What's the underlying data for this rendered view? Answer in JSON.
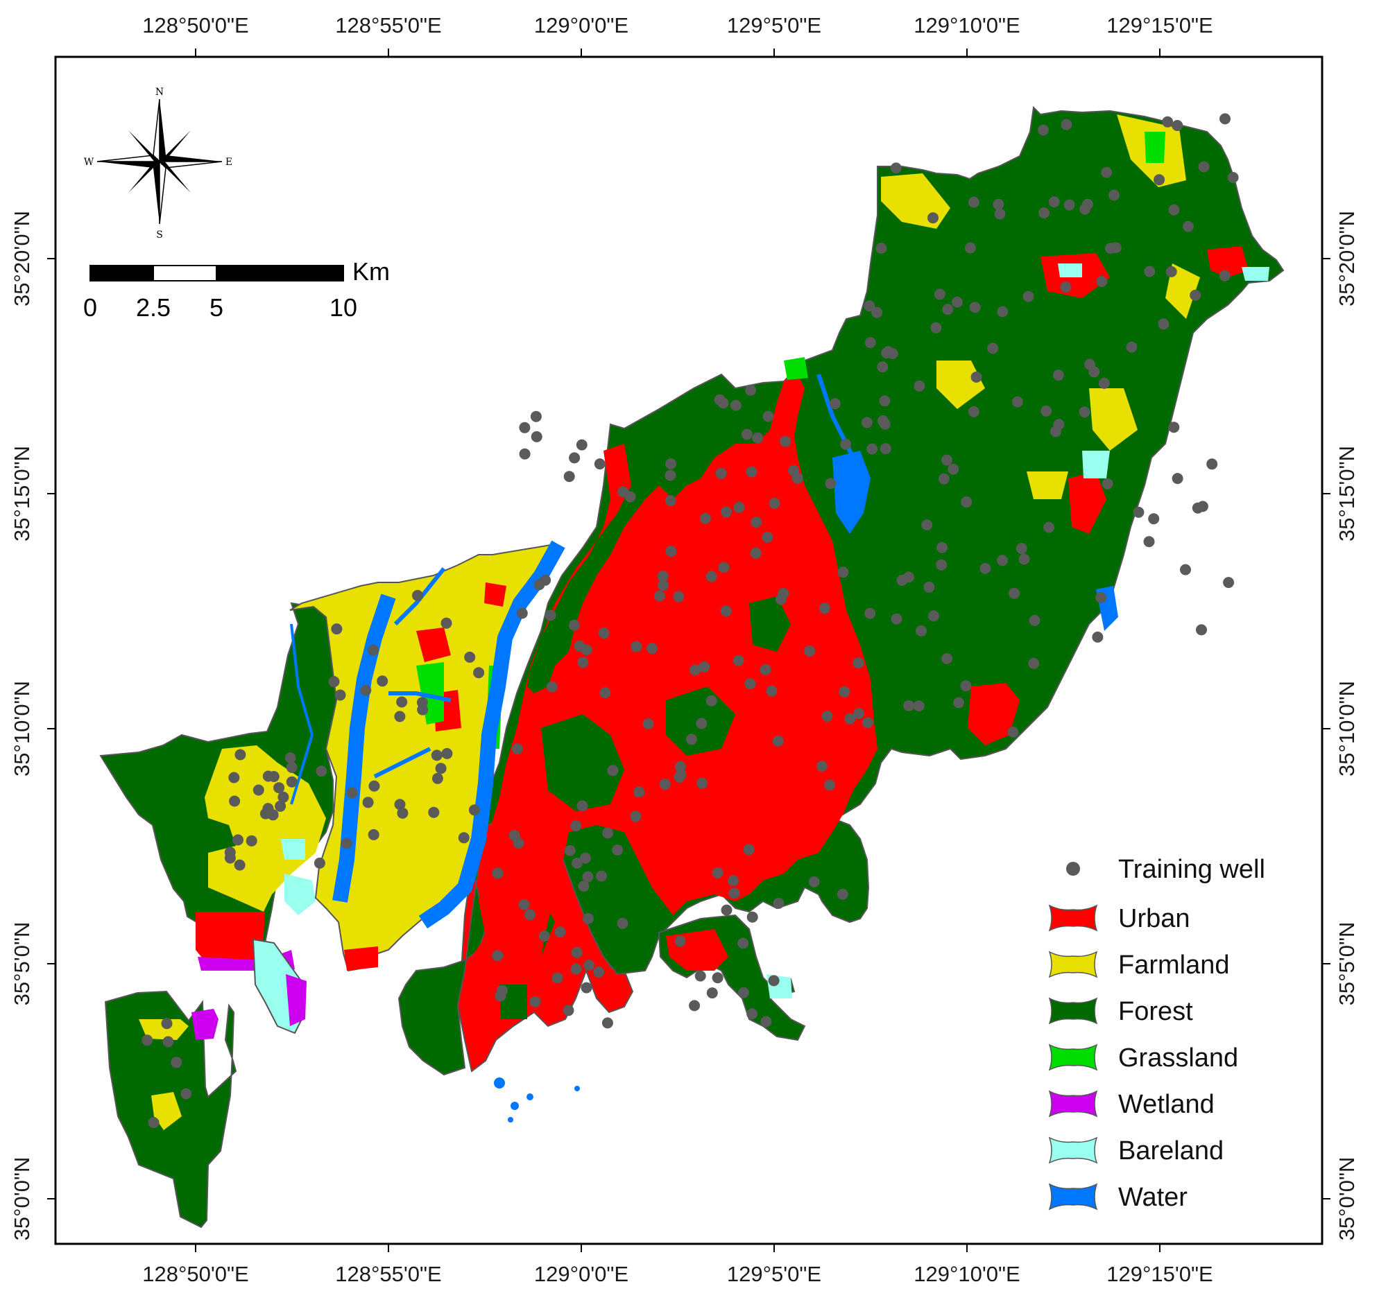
{
  "axes": {
    "top_labels": [
      "128°50'0\"E",
      "128°55'0\"E",
      "129°0'0\"E",
      "129°5'0\"E",
      "129°10'0\"E",
      "129°15'0\"E"
    ],
    "bottom_labels": [
      "128°50'0\"E",
      "128°55'0\"E",
      "129°0'0\"E",
      "129°5'0\"E",
      "129°10'0\"E",
      "129°15'0\"E"
    ],
    "left_labels": [
      "35°20'0\"N",
      "35°15'0\"N",
      "35°10'0\"N",
      "35°5'0\"N",
      "35°0'0\"N"
    ],
    "right_labels": [
      "35°20'0\"N",
      "35°15'0\"N",
      "35°10'0\"N",
      "35°5'0\"N",
      "35°0'0\"N"
    ]
  },
  "north_arrow": {
    "n": "N",
    "s": "S",
    "e": "E",
    "w": "W"
  },
  "scale_bar": {
    "unit": "Km",
    "ticks": [
      "0",
      "2.5",
      "5",
      "10"
    ]
  },
  "legend": {
    "items": [
      {
        "label": "Training well",
        "color": "#5a5a5a",
        "symbol": "dot"
      },
      {
        "label": "Urban",
        "color": "#ff0000",
        "symbol": "patch"
      },
      {
        "label": "Farmland",
        "color": "#e8e000",
        "symbol": "patch"
      },
      {
        "label": "Forest",
        "color": "#006a00",
        "symbol": "patch"
      },
      {
        "label": "Grassland",
        "color": "#00dd00",
        "symbol": "patch"
      },
      {
        "label": "Wetland",
        "color": "#cc00ee",
        "symbol": "patch"
      },
      {
        "label": "Bareland",
        "color": "#99ffee",
        "symbol": "patch"
      },
      {
        "label": "Water",
        "color": "#0077ff",
        "symbol": "patch"
      }
    ]
  }
}
